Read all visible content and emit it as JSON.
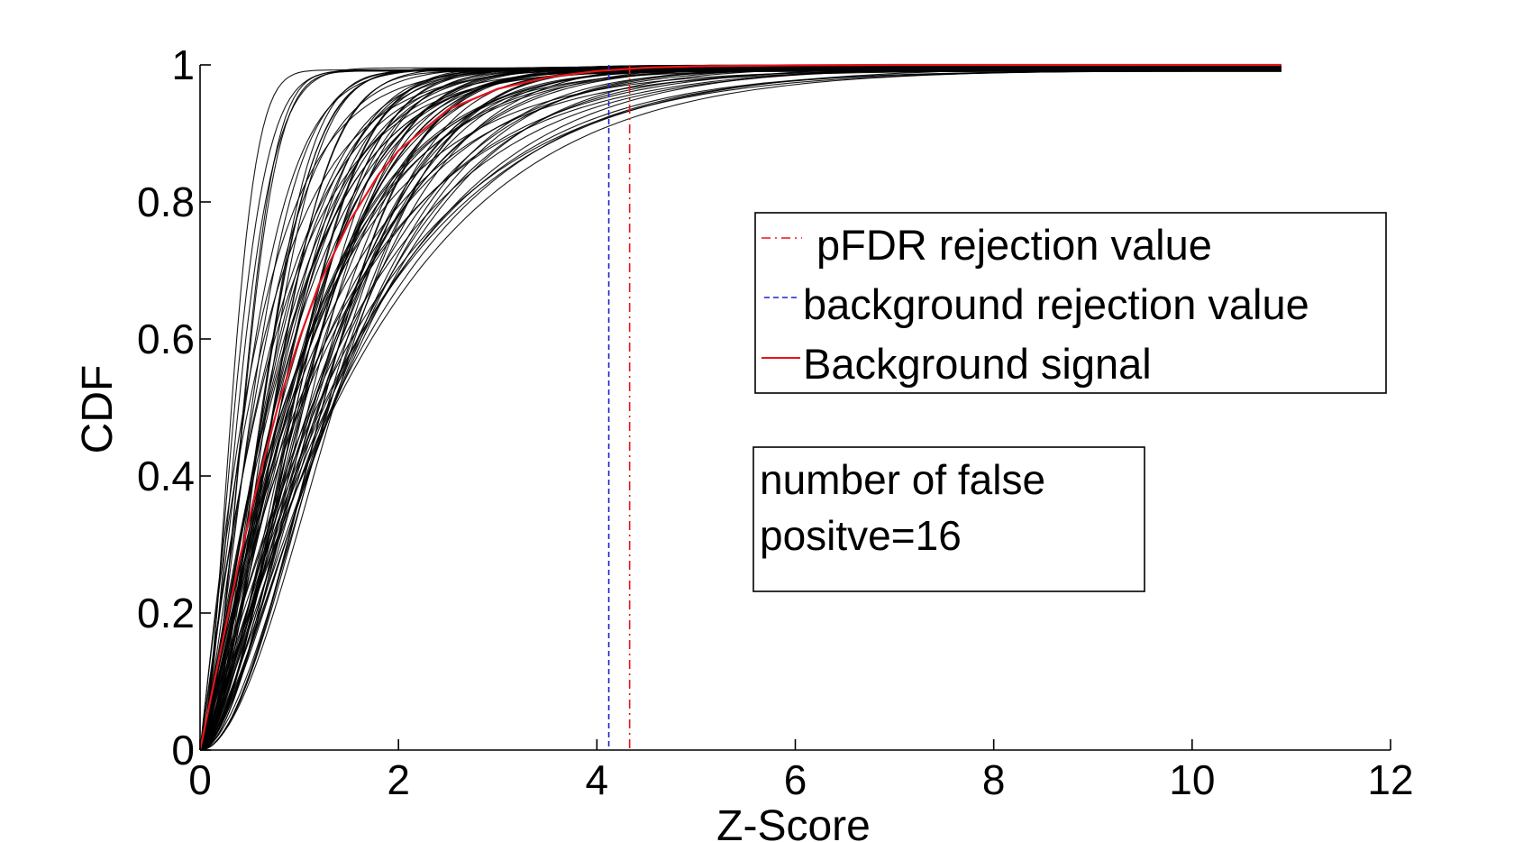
{
  "chart_data": {
    "type": "line",
    "title": "",
    "xlabel": "Z-Score",
    "ylabel": "CDF",
    "xlim": [
      0,
      12
    ],
    "ylim": [
      0,
      1
    ],
    "xticks": [
      0,
      2,
      4,
      6,
      8,
      10,
      12
    ],
    "yticks": [
      0,
      0.2,
      0.4,
      0.6,
      0.8,
      1
    ],
    "xtick_labels": [
      "0",
      "2",
      "4",
      "6",
      "8",
      "10",
      "12"
    ],
    "ytick_labels": [
      "0",
      "0.2",
      "0.4",
      "0.6",
      "0.8",
      "1"
    ],
    "grid": false,
    "legend": {
      "position": "center-right",
      "entries": [
        {
          "label": "pFDR rejection value",
          "color": "#e8141c",
          "style": "dash-dot"
        },
        {
          "label": "background rejection value",
          "color": "#1a22c8",
          "style": "dashed"
        },
        {
          "label": "Background signal",
          "color": "#e8141c",
          "style": "solid"
        }
      ]
    },
    "annotation": {
      "lines": [
        "number of false",
        "positve=16"
      ]
    },
    "vertical_lines": [
      {
        "name": "background rejection value",
        "x": 4.12,
        "color": "#1a22c8",
        "style": "dashed"
      },
      {
        "name": "pFDR rejection value",
        "x": 4.33,
        "color": "#e8141c",
        "style": "dash-dot"
      }
    ],
    "background_signal": {
      "name": "Background signal",
      "color": "#e8141c",
      "x": [
        0,
        0.1,
        0.2,
        0.3,
        0.4,
        0.5,
        0.6,
        0.8,
        1.0,
        1.2,
        1.5,
        1.8,
        2.0,
        2.5,
        3.0,
        3.5,
        4.0,
        4.5,
        5.0,
        6.0,
        7.0,
        8.0,
        10.0,
        10.9
      ],
      "y": [
        0,
        0.07,
        0.14,
        0.21,
        0.28,
        0.34,
        0.4,
        0.51,
        0.6,
        0.68,
        0.77,
        0.84,
        0.875,
        0.935,
        0.965,
        0.982,
        0.991,
        0.996,
        0.998,
        0.9995,
        1.0,
        1.0,
        1.0,
        1.0
      ]
    },
    "sample_curves": {
      "color": "#000000",
      "count": 80,
      "x_max": 10.9,
      "y_end": [
        0.99,
        1.0
      ],
      "description_scale": "exponential-like CDFs, median z between ~0.25 and ~1.3"
    }
  }
}
